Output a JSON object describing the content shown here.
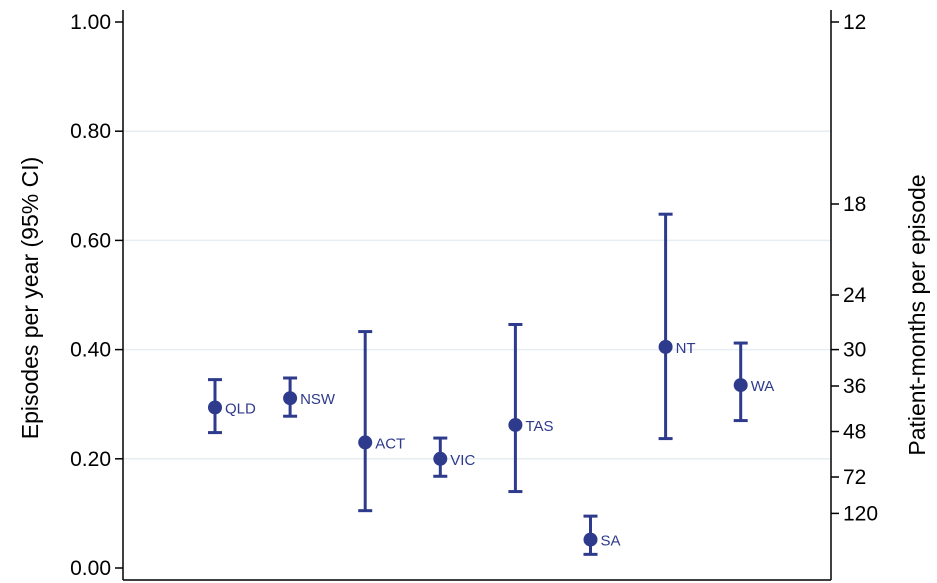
{
  "chart_data": {
    "type": "scatter",
    "title": "",
    "ylabel": "Episodes per year (95% CI)",
    "y2label": "Patient-months per episode",
    "ylim": [
      0,
      1.0
    ],
    "yticks": [
      "0.00",
      "0.20",
      "0.40",
      "0.60",
      "0.80",
      "1.00"
    ],
    "y2ticks": [
      "12",
      "18",
      "24",
      "30",
      "36",
      "48",
      "72",
      "120"
    ],
    "grid": true,
    "legend": "none",
    "colors": {
      "marker": "#2e3a8c",
      "grid": "#e6eef2",
      "axis": "#000000"
    },
    "points": [
      {
        "label": "QLD",
        "value": 0.294,
        "lower": 0.248,
        "upper": 0.345
      },
      {
        "label": "NSW",
        "value": 0.311,
        "lower": 0.278,
        "upper": 0.348
      },
      {
        "label": "ACT",
        "value": 0.23,
        "lower": 0.105,
        "upper": 0.433
      },
      {
        "label": "VIC",
        "value": 0.2,
        "lower": 0.168,
        "upper": 0.238
      },
      {
        "label": "TAS",
        "value": 0.262,
        "lower": 0.14,
        "upper": 0.446
      },
      {
        "label": "SA",
        "value": 0.052,
        "lower": 0.025,
        "upper": 0.095
      },
      {
        "label": "NT",
        "value": 0.405,
        "lower": 0.237,
        "upper": 0.648
      },
      {
        "label": "WA",
        "value": 0.335,
        "lower": 0.27,
        "upper": 0.412
      }
    ]
  }
}
